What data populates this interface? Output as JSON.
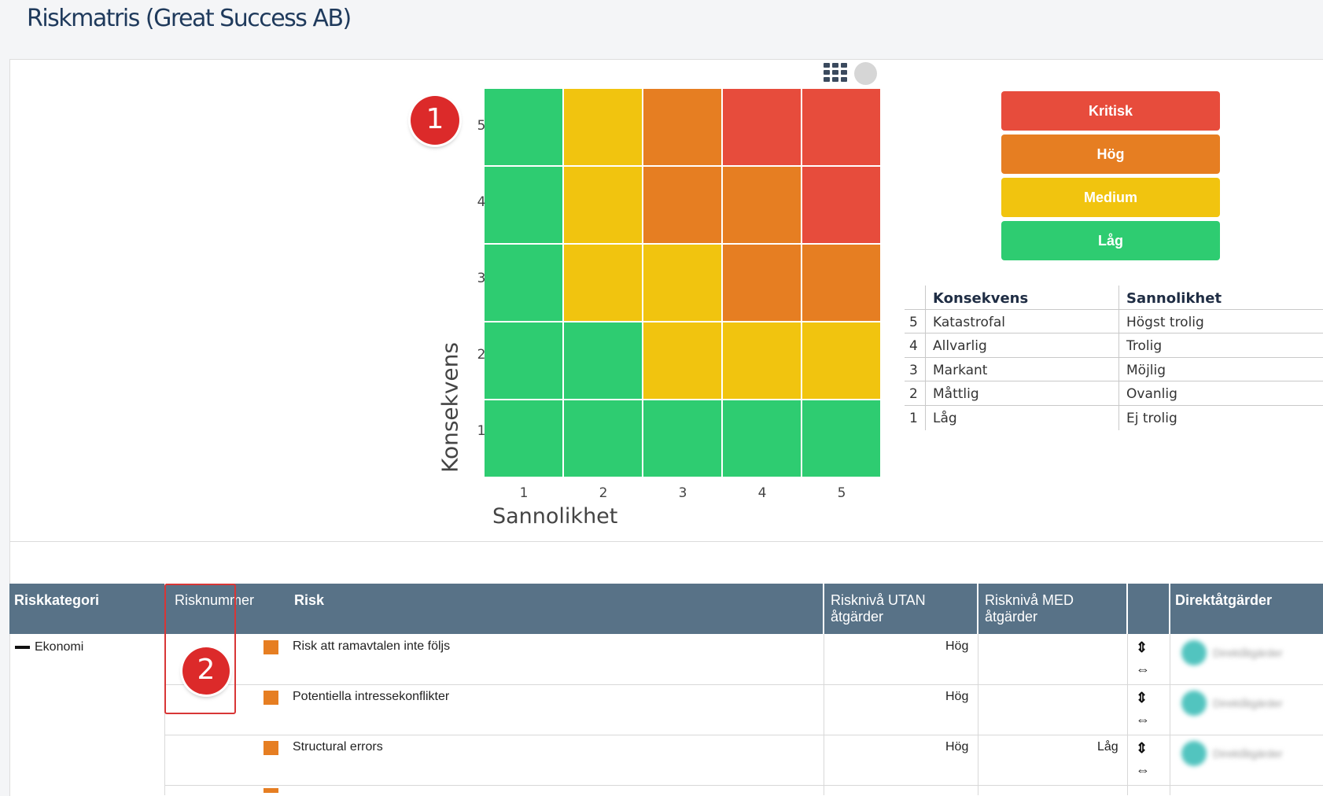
{
  "page": {
    "title": "Riskmatris (Great Success AB)"
  },
  "toolbar": {
    "grid_view_icon": "grid-icon",
    "toggle_icon": "circle-toggle-icon"
  },
  "colors": {
    "kritisk": "#e74c3c",
    "hog": "#e67e22",
    "medium": "#f1c40f",
    "lag": "#2ecc71",
    "header": "#587287"
  },
  "matrix": {
    "y_title": "Konsekvens",
    "x_title": "Sannolikhet",
    "y_ticks": [
      "5",
      "4",
      "3",
      "2",
      "1"
    ],
    "x_ticks": [
      "1",
      "2",
      "3",
      "4",
      "5"
    ],
    "grid": [
      [
        "lag",
        "medium",
        "hog",
        "kritisk",
        "kritisk"
      ],
      [
        "lag",
        "medium",
        "hog",
        "hog",
        "kritisk"
      ],
      [
        "lag",
        "medium",
        "medium",
        "hog",
        "hog"
      ],
      [
        "lag",
        "lag",
        "medium",
        "medium",
        "medium"
      ],
      [
        "lag",
        "lag",
        "lag",
        "lag",
        "lag"
      ]
    ]
  },
  "markers": {
    "m1": "1",
    "m2": "2"
  },
  "legend": {
    "kritisk": "Kritisk",
    "hog": "Hög",
    "medium": "Medium",
    "lag": "Låg"
  },
  "scale": {
    "h_konsekvens": "Konsekvens",
    "h_sannolikhet": "Sannolikhet",
    "rows": [
      {
        "n": "5",
        "k": "Katastrofal",
        "s": "Högst trolig"
      },
      {
        "n": "4",
        "k": "Allvarlig",
        "s": "Trolig"
      },
      {
        "n": "3",
        "k": "Markant",
        "s": "Möjlig"
      },
      {
        "n": "2",
        "k": "Måttlig",
        "s": "Ovanlig"
      },
      {
        "n": "1",
        "k": "Låg",
        "s": "Ej trolig"
      }
    ]
  },
  "table": {
    "headers": {
      "kategori": "Riskkategori",
      "nummer": "Risknummer",
      "risk": "Risk",
      "utan_1": "Risknivå UTAN",
      "utan_2": "åtgärder",
      "med_1": "Risknivå MED",
      "med_2": "åtgärder",
      "direkt": "Direktåtgärder"
    },
    "category": "Ekonomi",
    "rows": [
      {
        "risk": "Risk att ramavtalen inte följs",
        "utan": "Hög",
        "med": "",
        "direkt": "Direktåtgärder"
      },
      {
        "risk": "Potentiella intressekonflikter",
        "utan": "Hög",
        "med": "",
        "direkt": "Direktåtgärder"
      },
      {
        "risk": "Structural errors",
        "utan": "Hög",
        "med": "Låg",
        "direkt": "Direktåtgärder"
      }
    ],
    "action_icons": {
      "top": "link-icon",
      "bottom": "unlink-icon"
    }
  }
}
